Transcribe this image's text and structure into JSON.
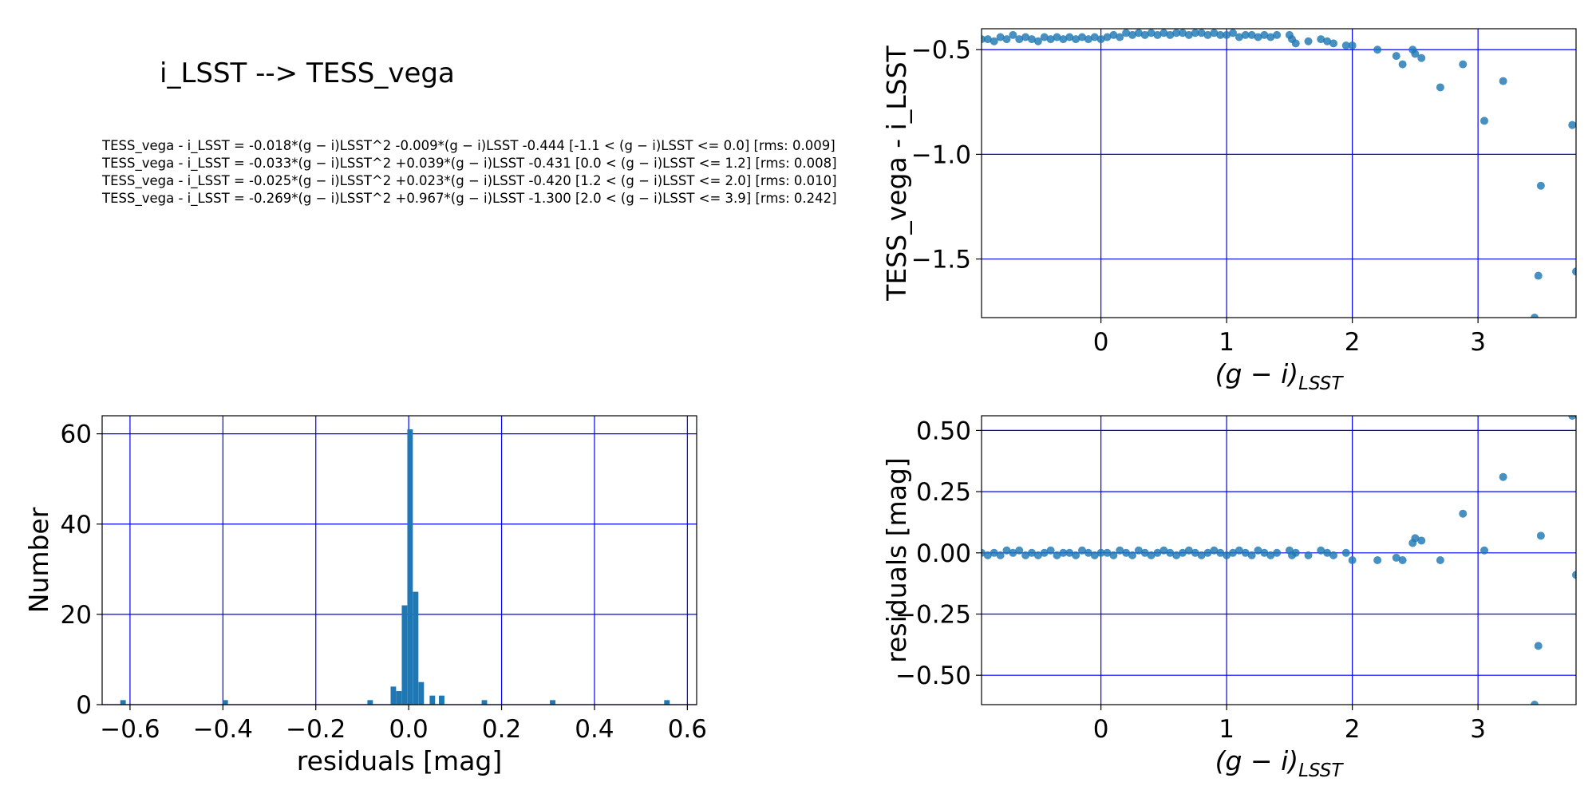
{
  "figure": {
    "title": "i_LSST --> TESS_vega",
    "equations": [
      "TESS_vega - i_LSST = -0.018*(g − i)LSST^2 -0.009*(g − i)LSST -0.444  [-1.1 < (g − i)LSST <= 0.0]  [rms: 0.009]",
      "TESS_vega - i_LSST = -0.033*(g − i)LSST^2 +0.039*(g − i)LSST -0.431  [0.0 < (g − i)LSST <= 1.2]  [rms: 0.008]",
      "TESS_vega - i_LSST = -0.025*(g − i)LSST^2 +0.023*(g − i)LSST -0.420  [1.2 < (g − i)LSST <= 2.0]  [rms: 0.010]",
      "TESS_vega - i_LSST = -0.269*(g − i)LSST^2 +0.967*(g − i)LSST -1.300  [2.0 < (g − i)LSST <= 3.9]  [rms: 0.242]"
    ]
  },
  "colors": {
    "marker": "#1f77b4",
    "grid": "#0000ff",
    "axes": "#000000"
  },
  "chart_data": [
    {
      "id": "color-term",
      "type": "scatter",
      "xlabel": "(g − i)LSST",
      "ylabel": "TESS_vega - i_LSST",
      "xlim": [
        -0.95,
        3.78
      ],
      "ylim": [
        -1.78,
        -0.4
      ],
      "xticks": [
        0,
        1,
        2,
        3
      ],
      "xtick_labels": [
        "0",
        "1",
        "2",
        "3"
      ],
      "yticks": [
        -1.5,
        -1.0,
        -0.5
      ],
      "ytick_labels": [
        "−1.5",
        "−1.0",
        "−0.5"
      ],
      "grid": true,
      "points": [
        [
          -0.95,
          -0.45
        ],
        [
          -0.9,
          -0.45
        ],
        [
          -0.85,
          -0.46
        ],
        [
          -0.8,
          -0.44
        ],
        [
          -0.75,
          -0.45
        ],
        [
          -0.7,
          -0.43
        ],
        [
          -0.65,
          -0.45
        ],
        [
          -0.6,
          -0.44
        ],
        [
          -0.55,
          -0.45
        ],
        [
          -0.5,
          -0.46
        ],
        [
          -0.45,
          -0.44
        ],
        [
          -0.4,
          -0.45
        ],
        [
          -0.35,
          -0.44
        ],
        [
          -0.3,
          -0.45
        ],
        [
          -0.25,
          -0.44
        ],
        [
          -0.2,
          -0.45
        ],
        [
          -0.15,
          -0.44
        ],
        [
          -0.1,
          -0.45
        ],
        [
          -0.05,
          -0.44
        ],
        [
          0.0,
          -0.45
        ],
        [
          0.05,
          -0.44
        ],
        [
          0.1,
          -0.43
        ],
        [
          0.15,
          -0.44
        ],
        [
          0.2,
          -0.42
        ],
        [
          0.25,
          -0.43
        ],
        [
          0.3,
          -0.42
        ],
        [
          0.35,
          -0.43
        ],
        [
          0.4,
          -0.42
        ],
        [
          0.45,
          -0.43
        ],
        [
          0.5,
          -0.42
        ],
        [
          0.55,
          -0.43
        ],
        [
          0.6,
          -0.42
        ],
        [
          0.65,
          -0.42
        ],
        [
          0.7,
          -0.43
        ],
        [
          0.75,
          -0.42
        ],
        [
          0.8,
          -0.42
        ],
        [
          0.85,
          -0.43
        ],
        [
          0.9,
          -0.42
        ],
        [
          0.95,
          -0.43
        ],
        [
          1.0,
          -0.43
        ],
        [
          1.05,
          -0.42
        ],
        [
          1.1,
          -0.44
        ],
        [
          1.15,
          -0.43
        ],
        [
          1.2,
          -0.43
        ],
        [
          1.25,
          -0.44
        ],
        [
          1.3,
          -0.43
        ],
        [
          1.35,
          -0.44
        ],
        [
          1.4,
          -0.43
        ],
        [
          1.5,
          -0.43
        ],
        [
          1.52,
          -0.45
        ],
        [
          1.55,
          -0.47
        ],
        [
          1.65,
          -0.46
        ],
        [
          1.75,
          -0.45
        ],
        [
          1.8,
          -0.46
        ],
        [
          1.85,
          -0.47
        ],
        [
          1.95,
          -0.48
        ],
        [
          2.0,
          -0.48
        ],
        [
          2.2,
          -0.5
        ],
        [
          2.35,
          -0.53
        ],
        [
          2.4,
          -0.57
        ],
        [
          2.48,
          -0.5
        ],
        [
          2.5,
          -0.52
        ],
        [
          2.55,
          -0.54
        ],
        [
          2.7,
          -0.68
        ],
        [
          2.88,
          -0.57
        ],
        [
          3.05,
          -0.84
        ],
        [
          3.2,
          -0.65
        ],
        [
          3.45,
          -1.78
        ],
        [
          3.48,
          -1.58
        ],
        [
          3.5,
          -1.15
        ],
        [
          3.75,
          -0.86
        ],
        [
          3.78,
          -1.56
        ]
      ]
    },
    {
      "id": "residual-hist",
      "type": "bar",
      "xlabel": "residuals [mag]",
      "ylabel": "Number",
      "xlim": [
        -0.66,
        0.62
      ],
      "ylim": [
        0,
        64
      ],
      "xticks": [
        -0.6,
        -0.4,
        -0.2,
        0.0,
        0.2,
        0.4,
        0.6
      ],
      "xtick_labels": [
        "−0.6",
        "−0.4",
        "−0.2",
        "0.0",
        "0.2",
        "0.4",
        "0.6"
      ],
      "yticks": [
        0,
        20,
        40,
        60
      ],
      "ytick_labels": [
        "0",
        "20",
        "40",
        "60"
      ],
      "grid": true,
      "bin_width": 0.0118,
      "bins": [
        [
          -0.615,
          1
        ],
        [
          -0.395,
          1
        ],
        [
          -0.083,
          1
        ],
        [
          -0.033,
          4
        ],
        [
          -0.021,
          3
        ],
        [
          -0.009,
          22
        ],
        [
          0.003,
          61
        ],
        [
          0.015,
          25
        ],
        [
          0.027,
          5
        ],
        [
          0.051,
          2
        ],
        [
          0.071,
          2
        ],
        [
          0.163,
          1
        ],
        [
          0.31,
          1
        ],
        [
          0.556,
          1
        ]
      ]
    },
    {
      "id": "residual-scatter",
      "type": "scatter",
      "xlabel": "(g − i)LSST",
      "ylabel": "residuals [mag]",
      "xlim": [
        -0.95,
        3.78
      ],
      "ylim": [
        -0.62,
        0.56
      ],
      "xticks": [
        0,
        1,
        2,
        3
      ],
      "xtick_labels": [
        "0",
        "1",
        "2",
        "3"
      ],
      "yticks": [
        -0.5,
        -0.25,
        0.0,
        0.25,
        0.5
      ],
      "ytick_labels": [
        "−0.50",
        "−0.25",
        "0.00",
        "0.25",
        "0.50"
      ],
      "grid": true,
      "points": [
        [
          -0.95,
          0.0
        ],
        [
          -0.9,
          -0.01
        ],
        [
          -0.85,
          0.0
        ],
        [
          -0.8,
          -0.01
        ],
        [
          -0.75,
          0.01
        ],
        [
          -0.7,
          0.0
        ],
        [
          -0.65,
          0.01
        ],
        [
          -0.6,
          -0.01
        ],
        [
          -0.55,
          0.0
        ],
        [
          -0.5,
          -0.01
        ],
        [
          -0.45,
          0.0
        ],
        [
          -0.4,
          0.01
        ],
        [
          -0.35,
          -0.01
        ],
        [
          -0.3,
          0.0
        ],
        [
          -0.25,
          0.0
        ],
        [
          -0.2,
          -0.01
        ],
        [
          -0.15,
          0.01
        ],
        [
          -0.1,
          0.0
        ],
        [
          -0.05,
          -0.01
        ],
        [
          0.0,
          0.0
        ],
        [
          0.05,
          0.0
        ],
        [
          0.1,
          -0.01
        ],
        [
          0.15,
          0.01
        ],
        [
          0.2,
          0.0
        ],
        [
          0.25,
          -0.01
        ],
        [
          0.3,
          0.01
        ],
        [
          0.35,
          0.0
        ],
        [
          0.4,
          -0.01
        ],
        [
          0.45,
          0.0
        ],
        [
          0.5,
          0.01
        ],
        [
          0.55,
          0.0
        ],
        [
          0.6,
          -0.01
        ],
        [
          0.65,
          0.0
        ],
        [
          0.7,
          0.01
        ],
        [
          0.75,
          0.0
        ],
        [
          0.8,
          -0.01
        ],
        [
          0.85,
          0.0
        ],
        [
          0.9,
          0.01
        ],
        [
          0.95,
          0.0
        ],
        [
          1.0,
          -0.01
        ],
        [
          1.05,
          0.0
        ],
        [
          1.1,
          0.01
        ],
        [
          1.15,
          0.0
        ],
        [
          1.2,
          -0.01
        ],
        [
          1.25,
          0.01
        ],
        [
          1.3,
          0.0
        ],
        [
          1.35,
          -0.01
        ],
        [
          1.4,
          0.0
        ],
        [
          1.5,
          0.01
        ],
        [
          1.52,
          -0.01
        ],
        [
          1.55,
          0.0
        ],
        [
          1.65,
          -0.01
        ],
        [
          1.75,
          0.01
        ],
        [
          1.8,
          0.0
        ],
        [
          1.85,
          -0.01
        ],
        [
          1.95,
          0.0
        ],
        [
          2.0,
          -0.03
        ],
        [
          2.2,
          -0.03
        ],
        [
          2.35,
          -0.02
        ],
        [
          2.4,
          -0.03
        ],
        [
          2.48,
          0.04
        ],
        [
          2.5,
          0.06
        ],
        [
          2.55,
          0.05
        ],
        [
          2.7,
          -0.03
        ],
        [
          2.88,
          0.16
        ],
        [
          3.05,
          0.01
        ],
        [
          3.2,
          0.31
        ],
        [
          3.45,
          -0.62
        ],
        [
          3.48,
          -0.38
        ],
        [
          3.5,
          0.07
        ],
        [
          3.75,
          0.56
        ],
        [
          3.78,
          -0.09
        ]
      ]
    }
  ]
}
